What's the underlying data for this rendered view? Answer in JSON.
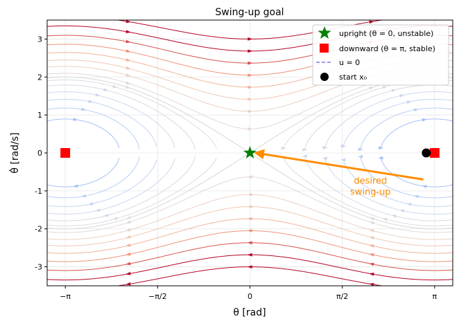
{
  "chart_data": {
    "type": "line",
    "title": "Swing-up goal",
    "xlabel": "θ  [rad]",
    "ylabel": "θ̇  [rad/s]",
    "xlim": [
      -3.45,
      3.45
    ],
    "ylim": [
      -3.5,
      3.5
    ],
    "grid": true,
    "x_ticks": [
      {
        "value": -3.14159,
        "label": "−π"
      },
      {
        "value": -1.5708,
        "label": "−π/2"
      },
      {
        "value": 0,
        "label": "0"
      },
      {
        "value": 1.5708,
        "label": "π/2"
      },
      {
        "value": 3.14159,
        "label": "π"
      }
    ],
    "y_ticks": [
      -3,
      -2,
      -1,
      0,
      1,
      2,
      3
    ],
    "dynamics": "pendulum phase portrait: dθ/dt = θ̇, dθ̇/dt = -(g/l)·sin(θ) (upright at θ=0)",
    "colormap": "coolwarm (by speed)",
    "legend_position": "upper right",
    "legend": [
      {
        "key": "upright",
        "label": "upright  (θ = 0, unstable)",
        "marker": "star",
        "color": "#008000"
      },
      {
        "key": "downward",
        "label": "downward  (θ = π, stable)",
        "marker": "square",
        "color": "#ff0000"
      },
      {
        "key": "u0",
        "label": "u = 0",
        "marker": "dashed-line",
        "color": "#7b7be6"
      },
      {
        "key": "start",
        "label": "start  x₀",
        "marker": "circle",
        "color": "#000000"
      }
    ],
    "points": {
      "upright": [
        [
          0,
          0
        ]
      ],
      "downward": [
        [
          -3.14159,
          0
        ],
        [
          3.14159,
          0
        ]
      ],
      "start": [
        [
          3.0,
          0
        ]
      ]
    },
    "annotation": {
      "text_line1": "desired",
      "text_line2": "swing-up",
      "color": "#ff8c00",
      "arrow_from": [
        2.95,
        -0.7
      ],
      "arrow_to": [
        0.1,
        0.0
      ],
      "text_at": [
        2.05,
        -0.92
      ]
    }
  }
}
